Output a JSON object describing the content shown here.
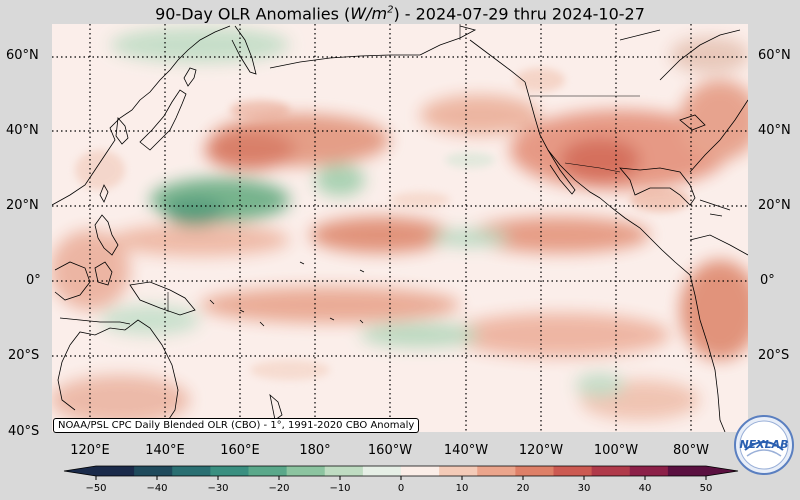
{
  "title": {
    "prefix": "90-Day OLR Anomalies (",
    "unit_base": "W/m",
    "unit_exp": "2",
    "suffix": ") - 2024-07-29 thru 2024-10-27"
  },
  "lat_labels": [
    "60°N",
    "40°N",
    "20°N",
    "0°",
    "20°S",
    "40°S"
  ],
  "lon_labels": [
    "120°E",
    "140°E",
    "160°E",
    "180°",
    "160°W",
    "140°W",
    "120°W",
    "100°W",
    "80°W"
  ],
  "caption": "NOAA/PSL CPC Daily Blended OLR (CBO) - 1°, 1991-2020 CBO Anomaly",
  "colorbar": {
    "ticks": [
      "−50",
      "−40",
      "−30",
      "−20",
      "−10",
      "0",
      "10",
      "20",
      "30",
      "40",
      "50"
    ],
    "min": -50,
    "max": 50,
    "colors": [
      "#1a2a4a",
      "#1f4a5c",
      "#2a6f72",
      "#3a8f80",
      "#5aa88a",
      "#8cc4a0",
      "#bfdcc2",
      "#e6efe6",
      "#fbeee8",
      "#f4cbb8",
      "#eba58c",
      "#de8068",
      "#cc5a52",
      "#b03a4a",
      "#8c2048",
      "#5a1040"
    ]
  },
  "logo": {
    "text": "NEXLAB",
    "colors": {
      "blue": "#2a5fb0",
      "white": "#ffffff"
    }
  },
  "map_colors": {
    "neutral": "#fbeeea",
    "positive": "#e08f76",
    "strong_positive": "#d46a56",
    "negative": "#8fc4a0",
    "strong_negative": "#5ea880"
  }
}
